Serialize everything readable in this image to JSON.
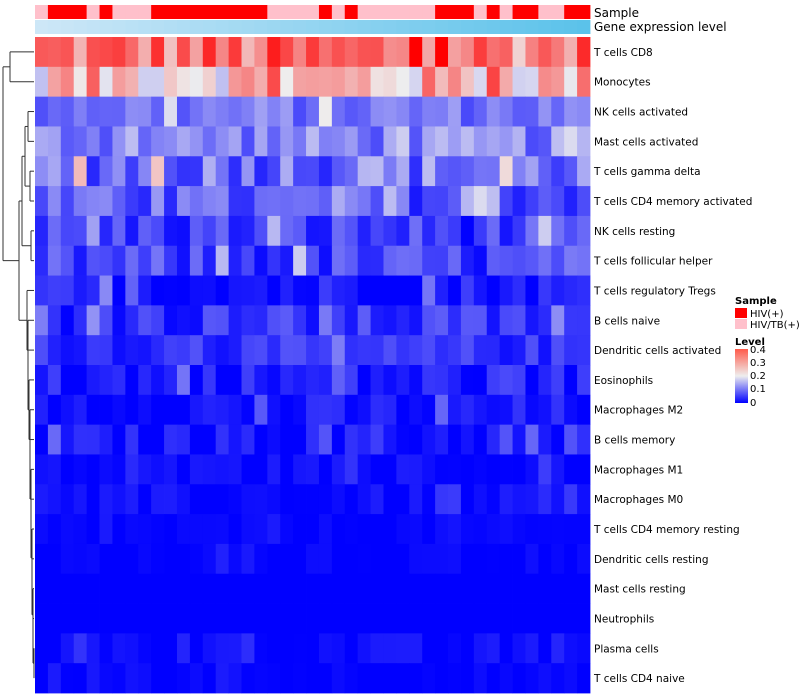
{
  "chart_data": {
    "type": "heatmap",
    "n_samples": 43,
    "annotations": [
      {
        "name": "Sample"
      },
      {
        "name": "Gene expression level"
      }
    ],
    "sample_groups_pattern": [
      1,
      0,
      0,
      0,
      1,
      0,
      1,
      1,
      1,
      0,
      0,
      0,
      0,
      0,
      0,
      0,
      0,
      0,
      1,
      1,
      1,
      1,
      0,
      1,
      0,
      1,
      1,
      1,
      1,
      1,
      1,
      0,
      0,
      0,
      1,
      0,
      1,
      0,
      0,
      1,
      1,
      0,
      0
    ],
    "gene_level_gradient": [
      "#cde7f7",
      "#5bc2ea"
    ],
    "rows": [
      {
        "label": "T cells CD8",
        "base": 0.3,
        "var": 0.08
      },
      {
        "label": "Monocytes",
        "base": 0.24,
        "var": 0.08
      },
      {
        "label": "NK cells activated",
        "base": 0.1,
        "var": 0.04
      },
      {
        "label": "Mast cells activated",
        "base": 0.11,
        "var": 0.05
      },
      {
        "label": "T cells gamma delta",
        "base": 0.1,
        "var": 0.07
      },
      {
        "label": "T cells CD4 memory activated",
        "base": 0.07,
        "var": 0.05
      },
      {
        "label": "NK cells resting",
        "base": 0.05,
        "var": 0.05
      },
      {
        "label": "T cells follicular helper",
        "base": 0.05,
        "var": 0.05
      },
      {
        "label": "T cells regulatory  Tregs",
        "base": 0.02,
        "var": 0.04
      },
      {
        "label": "B cells naive",
        "base": 0.04,
        "var": 0.04
      },
      {
        "label": "Dendritic cells activated",
        "base": 0.04,
        "var": 0.03
      },
      {
        "label": "Eosinophils",
        "base": 0.02,
        "var": 0.04
      },
      {
        "label": "Macrophages M2",
        "base": 0.015,
        "var": 0.03
      },
      {
        "label": "B cells memory",
        "base": 0.015,
        "var": 0.03
      },
      {
        "label": "Macrophages M1",
        "base": 0.005,
        "var": 0.02
      },
      {
        "label": "Macrophages M0",
        "base": 0.005,
        "var": 0.02
      },
      {
        "label": "T cells CD4 memory resting",
        "base": 0.002,
        "var": 0.01
      },
      {
        "label": "Dendritic cells resting",
        "base": 0.002,
        "var": 0.01
      },
      {
        "label": "Mast cells resting",
        "base": 0.0,
        "var": 0.0
      },
      {
        "label": "Neutrophils",
        "base": 0.0,
        "var": 0.0
      },
      {
        "label": "Plasma cells",
        "base": 0.005,
        "var": 0.02
      },
      {
        "label": "T cells CD4 naive",
        "base": 0.002,
        "var": 0.01
      }
    ],
    "color_scale": {
      "min": 0,
      "mid": 0.2,
      "max": 0.4,
      "colors": [
        "#0000ff",
        "#eeeeee",
        "#ff0000"
      ]
    },
    "legend": {
      "sample": {
        "title": "Sample",
        "items": [
          {
            "label": "HIV(+)",
            "color": "#ff0000"
          },
          {
            "label": "HIV/TB(+)",
            "color": "#ffc0cb"
          }
        ]
      },
      "level": {
        "title": "Level",
        "ticks": [
          "0.4",
          "0.3",
          "0.2",
          "0.1",
          "0"
        ]
      }
    }
  }
}
